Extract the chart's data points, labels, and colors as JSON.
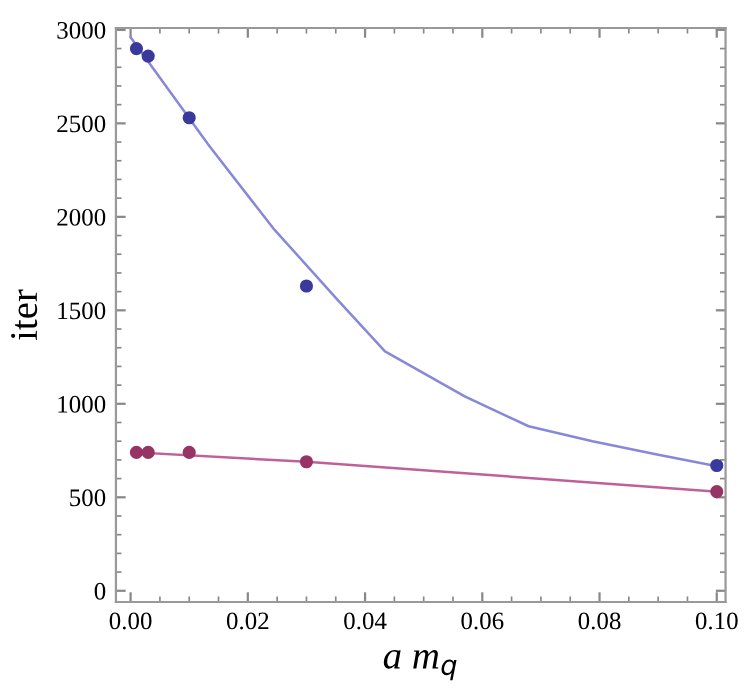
{
  "chart_data": {
    "type": "scatter",
    "xlabel": "a m$_{q}$",
    "ylabel": "iter",
    "xlim": [
      -0.0025,
      0.1015
    ],
    "ylim": [
      -60,
      3010
    ],
    "xticks": [
      {
        "value": 0,
        "label": "0.00"
      },
      {
        "value": 0.02,
        "label": "0.02"
      },
      {
        "value": 0.04,
        "label": "0.04"
      },
      {
        "value": 0.06,
        "label": "0.06"
      },
      {
        "value": 0.08,
        "label": "0.08"
      },
      {
        "value": 0.1,
        "label": "0.10"
      }
    ],
    "yticks": [
      0,
      500,
      1000,
      1500,
      2000,
      2500,
      3000
    ],
    "grid": false,
    "legend": false,
    "marker": "circle",
    "series": [
      {
        "type": "line",
        "color": "#8888d8",
        "marker": "none",
        "x": [
          0.0,
          0.0134,
          0.0243,
          0.0352,
          0.0434,
          0.057,
          0.0679,
          0.0788,
          0.0896,
          0.0994
        ],
        "values": [
          2960,
          2380,
          1940,
          1560,
          1280,
          1040,
          880,
          800,
          730,
          670
        ]
      },
      {
        "type": "line",
        "color": "#c0609a",
        "marker": "none",
        "x": [
          0.001,
          0.03,
          0.1
        ],
        "values": [
          740,
          690,
          530
        ]
      },
      {
        "color": "#3a3a9c",
        "x": [
          0.001,
          0.003,
          0.01,
          0.03,
          0.1
        ],
        "values": [
          2900,
          2860,
          2530,
          1630,
          670
        ]
      },
      {
        "color": "#963466",
        "x": [
          0.001,
          0.003,
          0.01,
          0.03,
          0.1
        ],
        "values": [
          740,
          740,
          740,
          690,
          530
        ]
      }
    ]
  }
}
